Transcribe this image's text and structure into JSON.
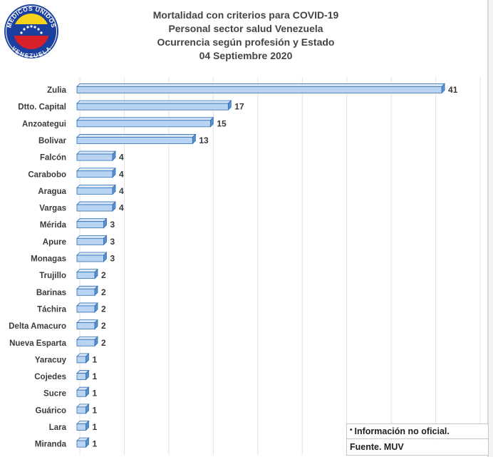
{
  "title_lines": [
    "Mortalidad con criterios para COVID-19",
    "Personal sector salud Venezuela",
    "Ocurrencia según profesión y Estado",
    "04 Septiembre 2020"
  ],
  "logo": {
    "text": "MEDICOS UNIDOS VENEZUELA",
    "icon": "medicos-unidos-logo"
  },
  "notes": {
    "bullet": "•",
    "info": "Información no oficial.",
    "source": "Fuente. MUV"
  },
  "colors": {
    "bar_face": "#b8d4f2",
    "bar_side": "#5b8fcf",
    "bar_top": "#d8e7f8",
    "bar_stroke": "#2f6fb5",
    "grid": "#e2e2e2"
  },
  "chart_data": {
    "type": "bar",
    "orientation": "horizontal",
    "style": "3d",
    "categories": [
      "Zulia",
      "Dtto. Capital",
      "Anzoategui",
      "Bolivar",
      "Falcón",
      "Carabobo",
      "Aragua",
      "Vargas",
      "Mérida",
      "Apure",
      "Monagas",
      "Trujillo",
      "Barinas",
      "Táchira",
      "Delta Amacuro",
      "Nueva Esparta",
      "Yaracuy",
      "Cojedes",
      "Sucre",
      "Guárico",
      "Lara",
      "Miranda"
    ],
    "values": [
      41,
      17,
      15,
      13,
      4,
      4,
      4,
      4,
      3,
      3,
      3,
      2,
      2,
      2,
      2,
      2,
      1,
      1,
      1,
      1,
      1,
      1
    ],
    "xlim": [
      0,
      45
    ],
    "grid": true,
    "legend": "none",
    "data_labels": true
  }
}
